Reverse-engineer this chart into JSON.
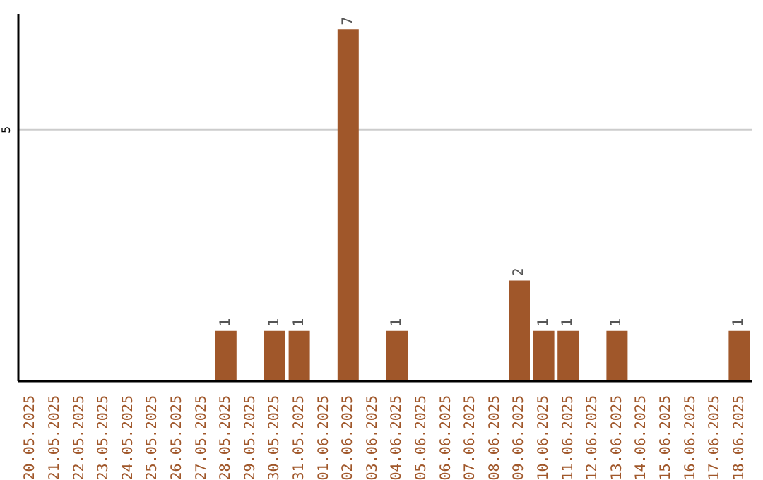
{
  "chart_data": {
    "type": "bar",
    "categories": [
      "20.05.2025",
      "21.05.2025",
      "22.05.2025",
      "23.05.2025",
      "24.05.2025",
      "25.05.2025",
      "26.05.2025",
      "27.05.2025",
      "28.05.2025",
      "29.05.2025",
      "30.05.2025",
      "31.05.2025",
      "01.06.2025",
      "02.06.2025",
      "03.06.2025",
      "04.06.2025",
      "05.06.2025",
      "06.06.2025",
      "07.06.2025",
      "08.06.2025",
      "09.06.2025",
      "10.06.2025",
      "11.06.2025",
      "12.06.2025",
      "13.06.2025",
      "14.06.2025",
      "15.06.2025",
      "16.06.2025",
      "17.06.2025",
      "18.06.2025"
    ],
    "values": [
      0,
      0,
      0,
      0,
      0,
      0,
      0,
      0,
      1,
      0,
      1,
      1,
      0,
      7,
      0,
      1,
      0,
      0,
      0,
      0,
      2,
      1,
      1,
      0,
      1,
      0,
      0,
      0,
      0,
      1
    ],
    "value_labels": [
      null,
      null,
      null,
      null,
      null,
      null,
      null,
      null,
      "1",
      null,
      "1",
      "1",
      null,
      "7",
      null,
      "1",
      null,
      null,
      null,
      null,
      "2",
      "1",
      "1",
      null,
      "1",
      null,
      null,
      null,
      null,
      "1"
    ],
    "color": "#a0572a",
    "ylim": [
      0,
      7.3
    ],
    "yticks": [
      5
    ],
    "grid": "y"
  }
}
